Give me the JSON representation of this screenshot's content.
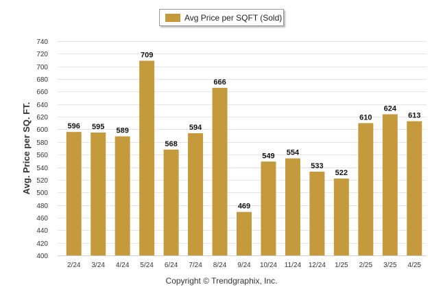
{
  "chart_data": {
    "type": "bar",
    "legend": {
      "label": "Avg Price per SQFT (Sold)",
      "placement": "top-center"
    },
    "ylabel": "Avg. Price per SQ. FT.",
    "xlabel": "",
    "ylim": [
      400,
      740
    ],
    "ytick_step": 20,
    "grid": true,
    "categories": [
      "2/24",
      "3/24",
      "4/24",
      "5/24",
      "6/24",
      "7/24",
      "8/24",
      "9/24",
      "10/24",
      "11/24",
      "12/24",
      "1/25",
      "2/25",
      "3/25",
      "4/25"
    ],
    "series": [
      {
        "name": "Avg Price per SQFT (Sold)",
        "values": [
          596,
          595,
          589,
          709,
          568,
          594,
          666,
          469,
          549,
          554,
          533,
          522,
          610,
          624,
          613
        ]
      }
    ],
    "bar_color": "#c49a3c"
  },
  "footer": {
    "copyright": "Copyright © Trendgraphix, Inc."
  }
}
